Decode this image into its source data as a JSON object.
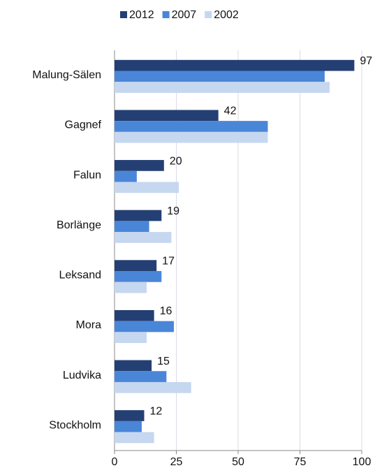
{
  "chart_data": {
    "type": "hbar",
    "categories": [
      "Malung-Sälen",
      "Gagnef",
      "Falun",
      "Borlänge",
      "Leksand",
      "Mora",
      "Ludvika",
      "Stockholm"
    ],
    "series": [
      {
        "name": "2012",
        "color": "#243f73",
        "values": [
          97,
          42,
          20,
          19,
          17,
          16,
          15,
          12
        ]
      },
      {
        "name": "2007",
        "color": "#4a86d8",
        "values": [
          85,
          62,
          9,
          14,
          19,
          24,
          21,
          11
        ]
      },
      {
        "name": "2002",
        "color": "#c6d7f0",
        "values": [
          87,
          62,
          26,
          23,
          13,
          13,
          31,
          16
        ]
      }
    ],
    "xlim": [
      0,
      100
    ],
    "xticks": [
      0,
      25,
      50,
      75,
      100
    ],
    "grid": true,
    "legend": "top"
  }
}
